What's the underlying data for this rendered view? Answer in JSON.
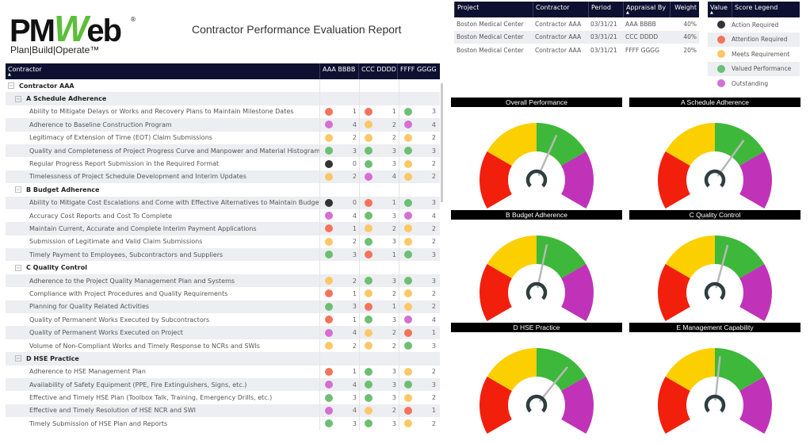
{
  "header": {
    "logo_text": "PMWeb",
    "logo_tagline": "Plan|Build|Operate™",
    "title": "Contractor Performance Evaluation Report"
  },
  "score_colors": {
    "0": "#333333",
    "1": "#f4735a",
    "2": "#fcc766",
    "3": "#6cbf73",
    "4": "#d46fd4"
  },
  "main_table": {
    "columns": [
      "Contractor",
      "AAA BBBB",
      "CCC DDDD",
      "FFFF GGGG"
    ],
    "contractor": "Contractor AAA",
    "groups": [
      {
        "label": "A Schedule Adherence",
        "items": [
          {
            "label": "Ability to Mitigate Delays or Works and Recovery Plans to Maintain Milestone Dates",
            "scores": [
              1,
              1,
              3
            ]
          },
          {
            "label": "Adherence to Baseline Construction Program",
            "scores": [
              4,
              2,
              4
            ]
          },
          {
            "label": "Legitimacy of Extension of Time (EOT) Claim Submissions",
            "scores": [
              2,
              2,
              2
            ]
          },
          {
            "label": "Quality and Completeness of Project Progress Curve and Manpower and Material Histograms",
            "scores": [
              3,
              3,
              3
            ]
          },
          {
            "label": "Regular Progress Report Submission in the Required Format",
            "scores": [
              0,
              3,
              2
            ]
          },
          {
            "label": "Timelessness of Project Schedule Development and Interim Updates",
            "scores": [
              2,
              4,
              2
            ]
          }
        ]
      },
      {
        "label": "B Budget Adherence",
        "items": [
          {
            "label": "Ability to Mitigate Cost Escalations and Come with Effective Alternatives to Maintain Budget",
            "scores": [
              0,
              1,
              3
            ]
          },
          {
            "label": "Accuracy Cost Reports and Cost To Complete",
            "scores": [
              4,
              3,
              4
            ]
          },
          {
            "label": "Maintain Current, Accurate and Complete Interim Payment Applications",
            "scores": [
              1,
              2,
              2
            ]
          },
          {
            "label": "Submission of Legitimate and Valid Claim Submissions",
            "scores": [
              2,
              3,
              2
            ]
          },
          {
            "label": "Timely Payment to Employees, Subcontractors and Suppliers",
            "scores": [
              3,
              1,
              3
            ]
          }
        ]
      },
      {
        "label": "C Quality Control",
        "items": [
          {
            "label": "Adherence to the Project Quality Management Plan and Systems",
            "scores": [
              2,
              3,
              3
            ]
          },
          {
            "label": "Compliance with Project Procedures and Quality Requirements",
            "scores": [
              1,
              2,
              2
            ]
          },
          {
            "label": "Planning for Quality Related Activities",
            "scores": [
              3,
              1,
              2
            ]
          },
          {
            "label": "Quality of Permanent Works Executed by Subcontractors",
            "scores": [
              1,
              3,
              4
            ]
          },
          {
            "label": "Quality of Permanent Works Executed on Project",
            "scores": [
              4,
              2,
              1
            ]
          },
          {
            "label": "Volume of Non-Compliant Works and Timely Response to NCRs and SWIs",
            "scores": [
              2,
              2,
              3
            ]
          }
        ]
      },
      {
        "label": "D HSE Practice",
        "items": [
          {
            "label": "Adherence to HSE Management Plan",
            "scores": [
              1,
              3,
              2
            ]
          },
          {
            "label": "Availability of Safety Equipment (PPE, Fire Extinguishers, Signs, etc.)",
            "scores": [
              4,
              3,
              3
            ]
          },
          {
            "label": "Effective and Timely HSE Plan (Toolbox Talk, Training, Emergency Drills, etc.)",
            "scores": [
              3,
              3,
              2
            ]
          },
          {
            "label": "Effective and Timely Resolution of HSE NCR and SWI",
            "scores": [
              4,
              2,
              1
            ]
          },
          {
            "label": "Timely Submission of HSE Plan and Reports",
            "scores": [
              3,
              3,
              2
            ]
          }
        ]
      }
    ]
  },
  "info_table": {
    "columns": [
      "Project",
      "Contractor",
      "Period",
      "Appraisal By",
      "Weight"
    ],
    "rows": [
      [
        "Boston Medical Center",
        "Contractor AAA",
        "03/31/21",
        "AAA BBBB",
        "40%"
      ],
      [
        "Boston Medical Center",
        "Contractor AAA",
        "03/31/21",
        "CCC DDDD",
        "40%"
      ],
      [
        "Boston Medical Center",
        "Contractor AAA",
        "03/31/21",
        "FFFF GGGG",
        "20%"
      ]
    ]
  },
  "legend": {
    "columns": [
      "Value",
      "Score Legend"
    ],
    "items": [
      {
        "value": 0,
        "label": "Action Required"
      },
      {
        "value": 1,
        "label": "Attention Required"
      },
      {
        "value": 2,
        "label": "Meets Requirement"
      },
      {
        "value": 3,
        "label": "Valued Performance"
      },
      {
        "value": 4,
        "label": "Outstanding"
      }
    ]
  },
  "gauges": {
    "range": [
      0,
      4
    ],
    "band_colors": [
      "#f21f0c",
      "#fccf00",
      "#3db83a",
      "#c033b8"
    ],
    "items": [
      {
        "title": "Overall Performance",
        "value": 2.4
      },
      {
        "title": "A Schedule Adherence",
        "value": 2.6
      },
      {
        "title": "B Budget Adherence",
        "value": 2.2
      },
      {
        "title": "C Quality Control",
        "value": 2.25
      },
      {
        "title": "D HSE Practice",
        "value": 2.65
      },
      {
        "title": "E Management Capability",
        "value": 2.1
      }
    ]
  }
}
